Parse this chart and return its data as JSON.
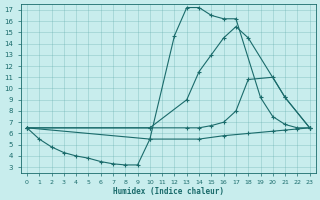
{
  "xlabel": "Humidex (Indice chaleur)",
  "bg_color": "#c8eded",
  "grid_color": "#5aa8a8",
  "line_color": "#1a6b6b",
  "xlim": [
    -0.5,
    23.5
  ],
  "ylim": [
    2.5,
    17.5
  ],
  "xticks": [
    0,
    1,
    2,
    3,
    4,
    5,
    6,
    7,
    8,
    9,
    10,
    11,
    12,
    13,
    14,
    15,
    16,
    17,
    18,
    19,
    20,
    21,
    22,
    23
  ],
  "yticks": [
    3,
    4,
    5,
    6,
    7,
    8,
    9,
    10,
    11,
    12,
    13,
    14,
    15,
    16,
    17
  ],
  "lines": [
    {
      "x": [
        0,
        1,
        2,
        3,
        4,
        5,
        6,
        7,
        8,
        9,
        10,
        12,
        13,
        14,
        15,
        16,
        17,
        19,
        20,
        21,
        22,
        23
      ],
      "y": [
        6.5,
        5.5,
        4.8,
        4.3,
        4.0,
        3.8,
        3.5,
        3.3,
        3.2,
        3.2,
        5.5,
        14.7,
        17.2,
        17.2,
        16.5,
        16.2,
        16.2,
        9.2,
        7.5,
        6.8,
        6.5,
        6.5
      ]
    },
    {
      "x": [
        0,
        10,
        13,
        14,
        15,
        16,
        17,
        18,
        21,
        23
      ],
      "y": [
        6.5,
        6.5,
        9.0,
        11.5,
        13.0,
        14.5,
        15.5,
        14.5,
        9.2,
        6.5
      ]
    },
    {
      "x": [
        0,
        10,
        13,
        14,
        15,
        16,
        17,
        18,
        20,
        21,
        23
      ],
      "y": [
        6.5,
        6.5,
        6.5,
        6.5,
        6.7,
        7.0,
        8.0,
        10.8,
        11.0,
        9.2,
        6.5
      ]
    },
    {
      "x": [
        0,
        10,
        14,
        16,
        18,
        20,
        21,
        22,
        23
      ],
      "y": [
        6.5,
        5.5,
        5.5,
        5.8,
        6.0,
        6.2,
        6.3,
        6.4,
        6.5
      ]
    }
  ]
}
